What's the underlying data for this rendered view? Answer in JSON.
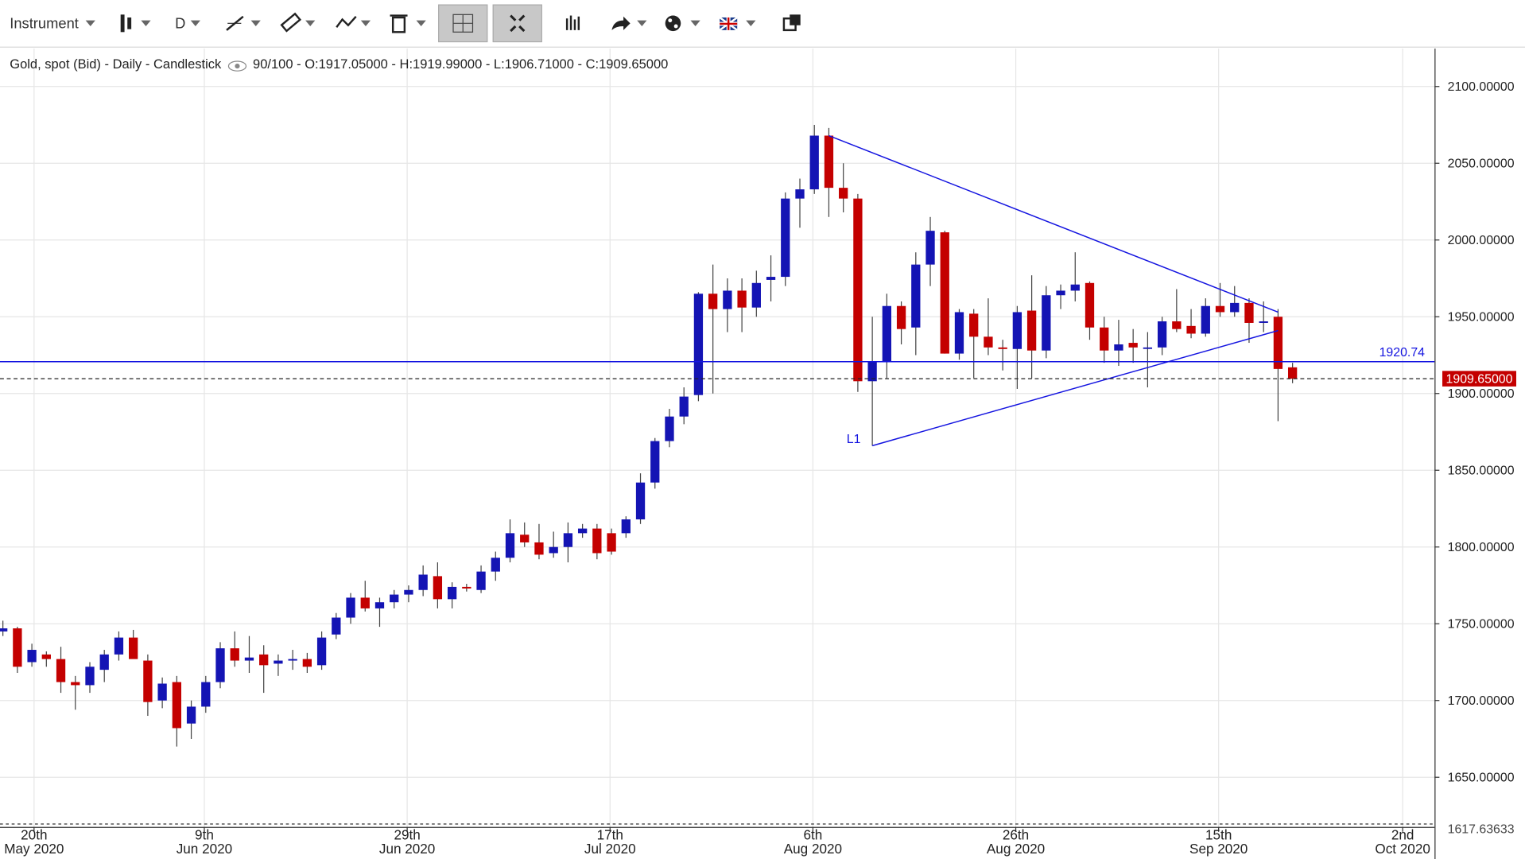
{
  "toolbar": {
    "instrument": "Instrument",
    "period": "D"
  },
  "chart_data": {
    "type": "candlestick",
    "title": "Gold, spot (Bid) - Daily - Candlestick",
    "subtitle": "90/100 - O:1917.05000 - H:1919.99000 - L:1906.71000 - C:1909.65000",
    "up_color": "#1414b4",
    "down_color": "#c40000",
    "open": [
      1745,
      1747,
      1725,
      1730,
      1727,
      1712,
      1710,
      1720,
      1730,
      1741,
      1726,
      1700,
      1712,
      1685,
      1696,
      1712,
      1734,
      1726,
      1730,
      1724,
      1726,
      1727,
      1723,
      1743,
      1754,
      1767,
      1760,
      1764,
      1769,
      1772,
      1781,
      1766,
      1774,
      1772,
      1784,
      1793,
      1808,
      1803,
      1796,
      1800,
      1809,
      1812,
      1809,
      1809,
      1818,
      1842,
      1869,
      1885,
      1899,
      1965,
      1955,
      1967,
      1956,
      1974,
      1976,
      2027,
      2033,
      2068,
      2034,
      2027,
      1908,
      1921,
      1957,
      1943,
      1984,
      2005,
      1926,
      1952,
      1937,
      1930,
      1929,
      1954,
      1928,
      1964,
      1967,
      1972,
      1943,
      1928,
      1933,
      1930,
      1930,
      1947,
      1944,
      1939,
      1957,
      1953,
      1959,
      1946,
      1950,
      1917.05
    ],
    "high": [
      1752,
      1748,
      1737,
      1732,
      1735,
      1716,
      1725,
      1733,
      1745,
      1746,
      1730,
      1715,
      1716,
      1700,
      1716,
      1738,
      1745,
      1742,
      1736,
      1730,
      1733,
      1731,
      1745,
      1757,
      1770,
      1778,
      1767,
      1772,
      1775,
      1788,
      1790,
      1777,
      1776,
      1788,
      1797,
      1818,
      1816,
      1815,
      1810,
      1816,
      1815,
      1815,
      1812,
      1820,
      1848,
      1871,
      1890,
      1904,
      1966,
      1984,
      1975,
      1975,
      1980,
      1990,
      2031,
      2040,
      2075,
      2073,
      2050,
      2030,
      1950,
      1965,
      1960,
      1992,
      2015,
      2006,
      1955,
      1955,
      1962,
      1935,
      1957,
      1977,
      1970,
      1971,
      1992,
      1973,
      1950,
      1948,
      1942,
      1940,
      1950,
      1968,
      1955,
      1962,
      1972,
      1970,
      1962,
      1960,
      1955,
      1919.99
    ],
    "low": [
      1742,
      1718,
      1722,
      1722,
      1705,
      1694,
      1705,
      1712,
      1726,
      1728,
      1690,
      1695,
      1670,
      1675,
      1692,
      1708,
      1722,
      1718,
      1705,
      1716,
      1720,
      1718,
      1720,
      1740,
      1750,
      1758,
      1748,
      1760,
      1764,
      1768,
      1760,
      1760,
      1771,
      1770,
      1778,
      1790,
      1800,
      1792,
      1793,
      1790,
      1806,
      1792,
      1795,
      1806,
      1815,
      1838,
      1865,
      1880,
      1895,
      1900,
      1940,
      1940,
      1950,
      1960,
      1970,
      2008,
      2030,
      2015,
      2018,
      1901,
      1866,
      1910,
      1932,
      1925,
      1970,
      1926,
      1922,
      1910,
      1925,
      1915,
      1903,
      1910,
      1923,
      1955,
      1960,
      1935,
      1920,
      1918,
      1920,
      1904,
      1925,
      1940,
      1936,
      1937,
      1950,
      1950,
      1933,
      1940,
      1882,
      1906.71
    ],
    "close": [
      1747,
      1722,
      1733,
      1727,
      1712,
      1710,
      1722,
      1730,
      1741,
      1727,
      1699,
      1711,
      1682,
      1696,
      1712,
      1734,
      1726,
      1728,
      1723,
      1726,
      1727,
      1722,
      1741,
      1754,
      1767,
      1760,
      1764,
      1769,
      1772,
      1782,
      1766,
      1774,
      1773,
      1784,
      1793,
      1809,
      1803,
      1795,
      1800,
      1809,
      1812,
      1796,
      1797,
      1818,
      1842,
      1869,
      1885,
      1898,
      1965,
      1955,
      1967,
      1956,
      1972,
      1976,
      2027,
      2033,
      2068,
      2034,
      2027,
      1908,
      1921,
      1957,
      1942,
      1984,
      2006,
      1926,
      1953,
      1937,
      1930,
      1929,
      1953,
      1928,
      1964,
      1967,
      1971,
      1943,
      1928,
      1932,
      1930,
      1930,
      1947,
      1942,
      1939,
      1957,
      1953,
      1959,
      1946,
      1947,
      1916,
      1909.65
    ],
    "xlim": [
      -0.2,
      98.8
    ],
    "xticks": [
      {
        "value": 2.15,
        "label": "20th May 2020"
      },
      {
        "value": 13.9,
        "label": "9th Jun 2020"
      },
      {
        "value": 27.9,
        "label": "29th Jun 2020"
      },
      {
        "value": 41.9,
        "label": "17th Jul 2020"
      },
      {
        "value": 55.9,
        "label": "6th Aug 2020"
      },
      {
        "value": 69.9,
        "label": "26th Aug 2020"
      },
      {
        "value": 83.9,
        "label": "15th Sep 2020"
      },
      {
        "value": 96.6,
        "label": "2nd Oct 2020"
      }
    ],
    "ylim": [
      1617.63633,
      2124.7
    ],
    "yticks": [
      {
        "value": 1650,
        "label": "1650.00000"
      },
      {
        "value": 1700,
        "label": "1700.00000"
      },
      {
        "value": 1750,
        "label": "1750.00000"
      },
      {
        "value": 1800,
        "label": "1800.00000"
      },
      {
        "value": 1850,
        "label": "1850.00000"
      },
      {
        "value": 1900,
        "label": "1900.00000"
      },
      {
        "value": 1950,
        "label": "1950.00000"
      },
      {
        "value": 2000,
        "label": "2000.00000"
      },
      {
        "value": 2050,
        "label": "2050.00000"
      },
      {
        "value": 2100,
        "label": "2100.00000"
      }
    ],
    "grid": true,
    "hline": {
      "value": 1920.74,
      "color": "#1414e0"
    },
    "last_price": {
      "value": 1909.65,
      "label": "1909.65000"
    },
    "trendlines": [
      {
        "from": [
          57,
          2068
        ],
        "to": [
          88,
          1953
        ],
        "color": "#1414e0"
      },
      {
        "label": "L1",
        "from": [
          60,
          1866
        ],
        "to": [
          88,
          1941
        ],
        "color": "#1414e0"
      }
    ]
  }
}
